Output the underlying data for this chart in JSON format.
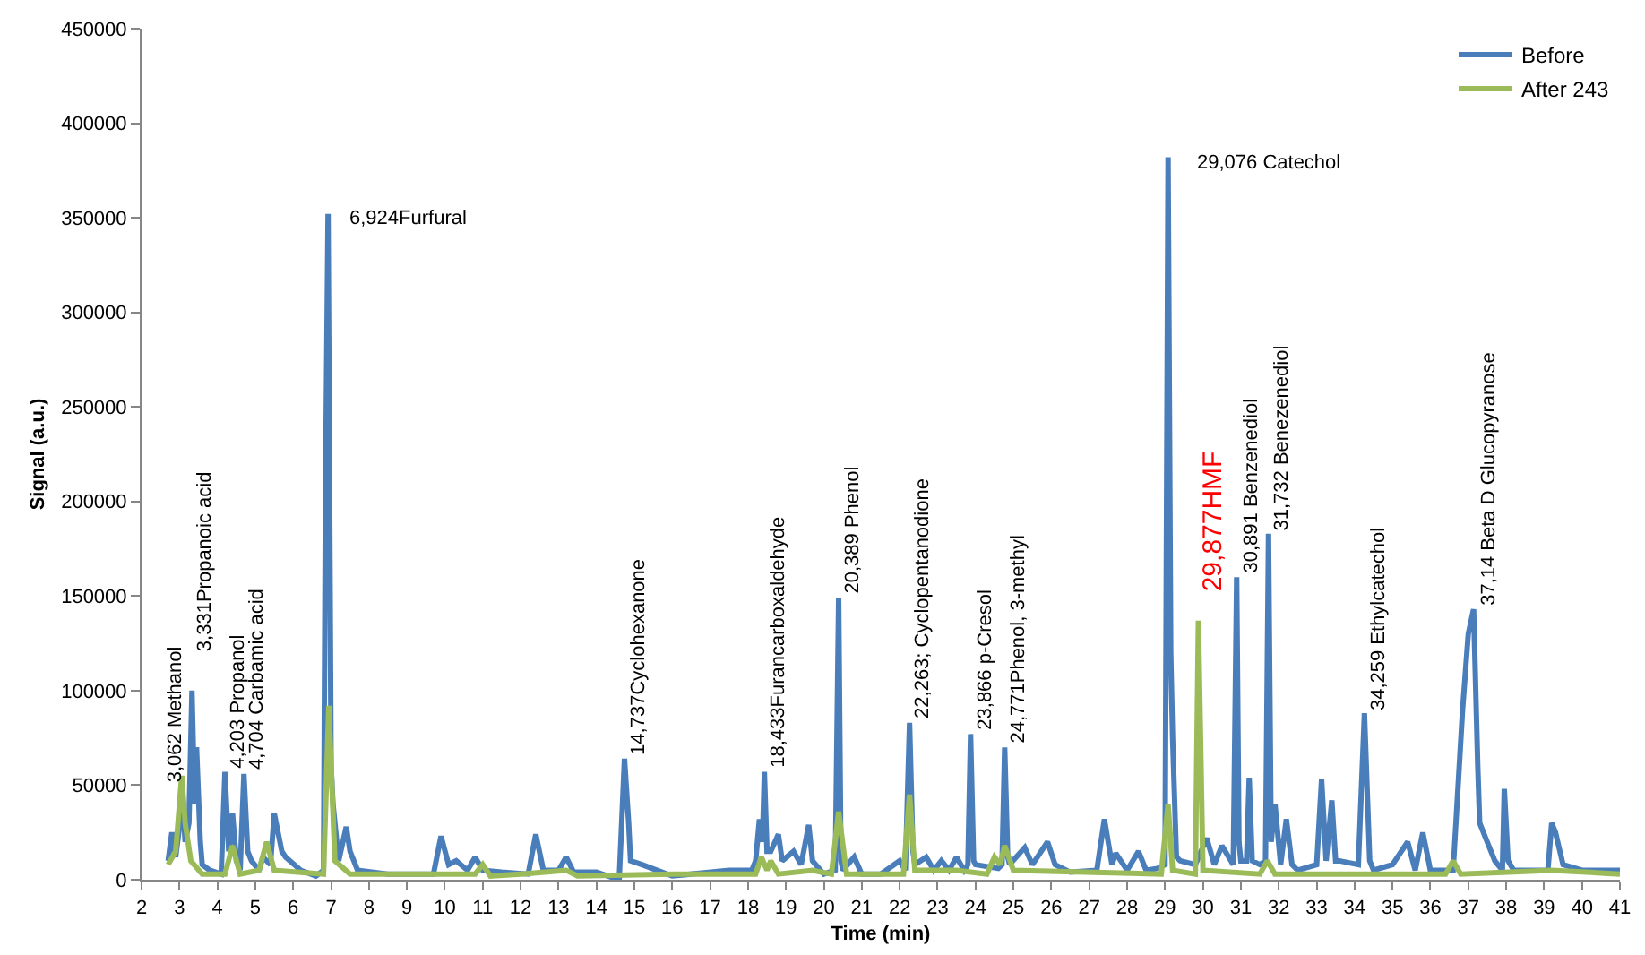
{
  "chart_data": {
    "type": "line",
    "xlabel": "Time (min)",
    "ylabel": "Signal (a.u.)",
    "xlim": [
      2,
      41
    ],
    "xticks": [
      2,
      3,
      4,
      5,
      6,
      7,
      8,
      9,
      10,
      11,
      12,
      13,
      14,
      15,
      16,
      17,
      18,
      19,
      20,
      21,
      22,
      23,
      24,
      25,
      26,
      27,
      28,
      29,
      30,
      31,
      32,
      33,
      34,
      35,
      36,
      37,
      38,
      39,
      40,
      41
    ],
    "ylim": [
      0,
      450000
    ],
    "yticks": [
      0,
      50000,
      100000,
      150000,
      200000,
      250000,
      300000,
      350000,
      400000,
      450000
    ],
    "legend": "top right",
    "marker": "none",
    "line_style": "solid",
    "series": [
      {
        "name": "Before",
        "color": "#4a7ebb",
        "x": [
          2.7,
          2.8,
          2.9,
          3.0,
          3.06,
          3.15,
          3.25,
          3.33,
          3.4,
          3.45,
          3.55,
          3.6,
          3.8,
          4.1,
          4.2,
          4.3,
          4.4,
          4.5,
          4.6,
          4.7,
          4.8,
          4.9,
          5.1,
          5.2,
          5.4,
          5.5,
          5.7,
          5.8,
          6.2,
          6.6,
          6.8,
          6.85,
          6.92,
          7.0,
          7.05,
          7.2,
          7.4,
          7.5,
          7.7,
          8.5,
          9.7,
          9.9,
          10.1,
          10.3,
          10.6,
          10.8,
          11.0,
          11.5,
          12.2,
          12.4,
          12.6,
          13.0,
          13.2,
          13.4,
          14.0,
          14.6,
          14.74,
          14.85,
          14.9,
          15.2,
          16.0,
          17.5,
          18.1,
          18.2,
          18.3,
          18.38,
          18.43,
          18.5,
          18.6,
          18.8,
          18.9,
          19.2,
          19.4,
          19.6,
          19.7,
          20.0,
          20.3,
          20.39,
          20.45,
          20.5,
          20.8,
          21.0,
          21.5,
          22.0,
          22.15,
          22.26,
          22.35,
          22.4,
          22.7,
          22.9,
          23.1,
          23.3,
          23.5,
          23.7,
          23.8,
          23.87,
          23.95,
          24.0,
          24.6,
          24.7,
          24.77,
          24.85,
          24.9,
          25.3,
          25.5,
          25.9,
          26.1,
          26.5,
          27.2,
          27.4,
          27.6,
          27.7,
          28.0,
          28.3,
          28.5,
          28.8,
          29.0,
          29.08,
          29.15,
          29.2,
          29.3,
          29.4,
          29.8,
          30.1,
          30.3,
          30.5,
          30.8,
          30.89,
          30.95,
          31.0,
          31.15,
          31.22,
          31.3,
          31.5,
          31.65,
          31.73,
          31.8,
          31.9,
          32.05,
          32.2,
          32.35,
          32.5,
          33.0,
          33.13,
          33.25,
          33.4,
          33.5,
          33.6,
          34.1,
          34.26,
          34.4,
          34.5,
          35.0,
          35.4,
          35.6,
          35.8,
          36.0,
          36.5,
          36.6,
          36.85,
          37.0,
          37.14,
          37.25,
          37.3,
          37.5,
          37.7,
          37.9,
          37.95,
          38.05,
          38.2,
          39.1,
          39.2,
          39.3,
          39.5,
          40.0,
          41.0
        ],
        "values": [
          10000,
          25000,
          12000,
          28000,
          50000,
          20000,
          30000,
          100000,
          40000,
          70000,
          20000,
          8000,
          5000,
          3000,
          57000,
          15000,
          35000,
          10000,
          5000,
          56000,
          15000,
          10000,
          5000,
          12000,
          8000,
          35000,
          15000,
          12000,
          5000,
          2000,
          5000,
          200000,
          352000,
          60000,
          40000,
          10000,
          28000,
          15000,
          5000,
          3000,
          3000,
          23000,
          8000,
          10000,
          5000,
          12000,
          5000,
          4000,
          3000,
          24000,
          5000,
          5000,
          12000,
          4000,
          4000,
          0,
          64000,
          30000,
          10000,
          8000,
          2000,
          5000,
          5000,
          10000,
          32000,
          20000,
          57000,
          15000,
          15000,
          24000,
          10000,
          15000,
          8000,
          29000,
          10000,
          3000,
          5000,
          149000,
          10000,
          5000,
          12000,
          3000,
          3000,
          10000,
          5000,
          83000,
          15000,
          8000,
          12000,
          5000,
          10000,
          5000,
          12000,
          5000,
          8000,
          77000,
          10000,
          8000,
          6000,
          8000,
          70000,
          12000,
          8000,
          17000,
          8000,
          20000,
          8000,
          4000,
          5000,
          32000,
          8000,
          14000,
          5000,
          15000,
          5000,
          6000,
          8000,
          382000,
          120000,
          75000,
          12000,
          10000,
          8000,
          22000,
          8000,
          18000,
          8000,
          160000,
          20000,
          10000,
          10000,
          54000,
          10000,
          8000,
          10000,
          183000,
          20000,
          40000,
          8000,
          32000,
          8000,
          5000,
          8000,
          53000,
          10000,
          42000,
          10000,
          10000,
          8000,
          88000,
          10000,
          5000,
          8000,
          20000,
          5000,
          25000,
          5000,
          5000,
          5000,
          90000,
          130000,
          143000,
          60000,
          30000,
          20000,
          10000,
          5000,
          48000,
          10000,
          5000,
          5000,
          30000,
          25000,
          8000,
          5000,
          5000
        ]
      },
      {
        "name": "After 243",
        "color": "#9bbb59",
        "x": [
          2.7,
          2.9,
          3.06,
          3.15,
          3.3,
          3.6,
          4.2,
          4.4,
          4.6,
          5.1,
          5.3,
          5.5,
          6.8,
          6.94,
          7.1,
          7.5,
          10.8,
          11.0,
          11.2,
          12.0,
          13.2,
          13.5,
          16.0,
          18.2,
          18.35,
          18.5,
          18.6,
          18.8,
          19.7,
          20.2,
          20.39,
          20.6,
          22.1,
          22.26,
          22.4,
          23.5,
          24.3,
          24.5,
          24.65,
          24.77,
          25.0,
          28.9,
          29.08,
          29.2,
          29.8,
          29.88,
          30.0,
          31.5,
          31.7,
          31.9,
          36.4,
          36.6,
          36.8,
          39.2,
          41.0
        ],
        "values": [
          8000,
          15000,
          55000,
          30000,
          10000,
          3000,
          3000,
          18000,
          3000,
          5000,
          20000,
          5000,
          3000,
          92000,
          10000,
          3000,
          3000,
          8000,
          2000,
          3000,
          5000,
          2000,
          3000,
          3000,
          12000,
          5000,
          10000,
          3000,
          5000,
          3000,
          36000,
          3000,
          3000,
          45000,
          5000,
          5000,
          3000,
          12000,
          8000,
          18000,
          5000,
          3000,
          40000,
          5000,
          3000,
          137000,
          5000,
          3000,
          10000,
          3000,
          3000,
          10000,
          3000,
          5000,
          3000
        ]
      }
    ],
    "annotations": [
      {
        "text": "3,062 Methanol",
        "x": 3.06,
        "y": 50000
      },
      {
        "text": "3,331Propanoic acid",
        "x": 3.33,
        "y": 100000
      },
      {
        "text": "4,203 Propanol",
        "x": 4.2,
        "y": 57000
      },
      {
        "text": "4,704 Carbamic acid",
        "x": 4.7,
        "y": 56000
      },
      {
        "text": "6,924Furfural",
        "x": 6.92,
        "y": 352000
      },
      {
        "text": "14,737Cyclohexanone",
        "x": 14.74,
        "y": 64000
      },
      {
        "text": "18,433Furancarboxaldehyde",
        "x": 18.43,
        "y": 57000
      },
      {
        "text": "20,389 Phenol",
        "x": 20.39,
        "y": 149000
      },
      {
        "text": "22,263; Cyclopentanodione",
        "x": 22.26,
        "y": 83000
      },
      {
        "text": "23,866 p-Cresol",
        "x": 23.87,
        "y": 77000
      },
      {
        "text": "24,771Phenol, 3-methyl",
        "x": 24.77,
        "y": 70000
      },
      {
        "text": "29,076 Catechol",
        "x": 29.08,
        "y": 382000
      },
      {
        "text": "29,877HMF",
        "x": 29.88,
        "y": 137000
      },
      {
        "text": "30,891 Benzenediol",
        "x": 30.89,
        "y": 160000
      },
      {
        "text": "31,732 Benezenediol",
        "x": 31.73,
        "y": 183000
      },
      {
        "text": "34,259 Ethylcatechol",
        "x": 34.26,
        "y": 88000
      },
      {
        "text": "37,14 Beta D Glucopyranose",
        "x": 37.14,
        "y": 143000
      }
    ]
  }
}
